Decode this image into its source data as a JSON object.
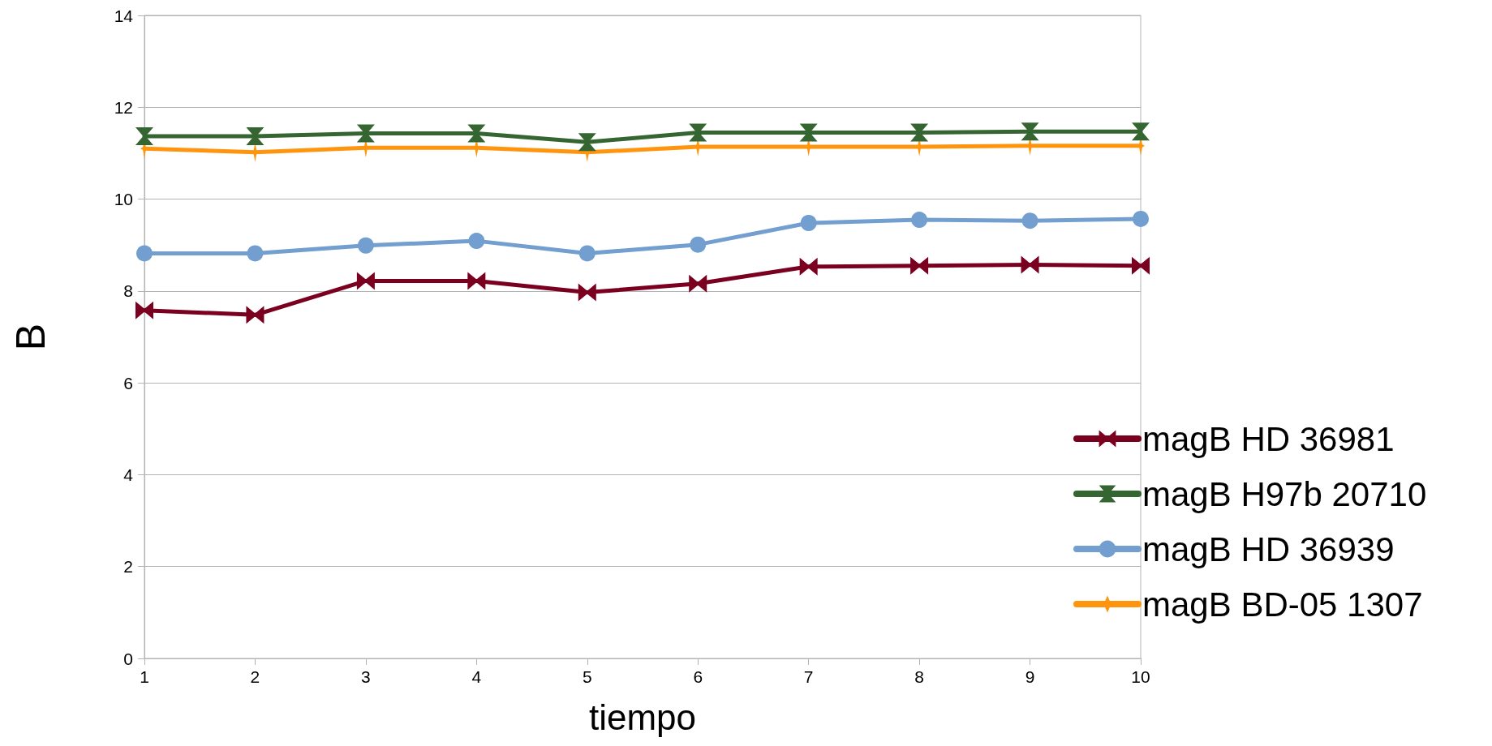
{
  "chart_data": {
    "type": "line",
    "xlabel": "tiempo",
    "ylabel": "B",
    "x": [
      1,
      2,
      3,
      4,
      5,
      6,
      7,
      8,
      9,
      10
    ],
    "xlim": [
      1,
      10
    ],
    "xticks": [
      1,
      2,
      3,
      4,
      5,
      6,
      7,
      8,
      9,
      10
    ],
    "ylim": [
      0,
      14
    ],
    "yticks": [
      0,
      2,
      4,
      6,
      8,
      10,
      12,
      14
    ],
    "grid": "y",
    "legend": "right",
    "line_style": "solid",
    "series": [
      {
        "name": "magB HD 36981",
        "color": "#7b0020",
        "marker": "cross",
        "values": [
          7.58,
          7.48,
          8.22,
          8.22,
          7.97,
          8.16,
          8.53,
          8.55,
          8.57,
          8.55
        ]
      },
      {
        "name": "magB H97b 20710",
        "color": "#356632",
        "marker": "triangle",
        "values": [
          11.37,
          11.37,
          11.43,
          11.43,
          11.24,
          11.45,
          11.45,
          11.45,
          11.47,
          11.47
        ]
      },
      {
        "name": "magB HD 36939",
        "color": "#729fcf",
        "marker": "circle",
        "values": [
          8.82,
          8.82,
          8.99,
          9.09,
          8.82,
          9.01,
          9.48,
          9.55,
          9.53,
          9.57
        ]
      },
      {
        "name": "magB BD-05 1307",
        "color": "#ff950e",
        "marker": "star",
        "values": [
          11.1,
          11.02,
          11.12,
          11.12,
          11.02,
          11.14,
          11.14,
          11.14,
          11.16,
          11.16
        ]
      }
    ]
  }
}
